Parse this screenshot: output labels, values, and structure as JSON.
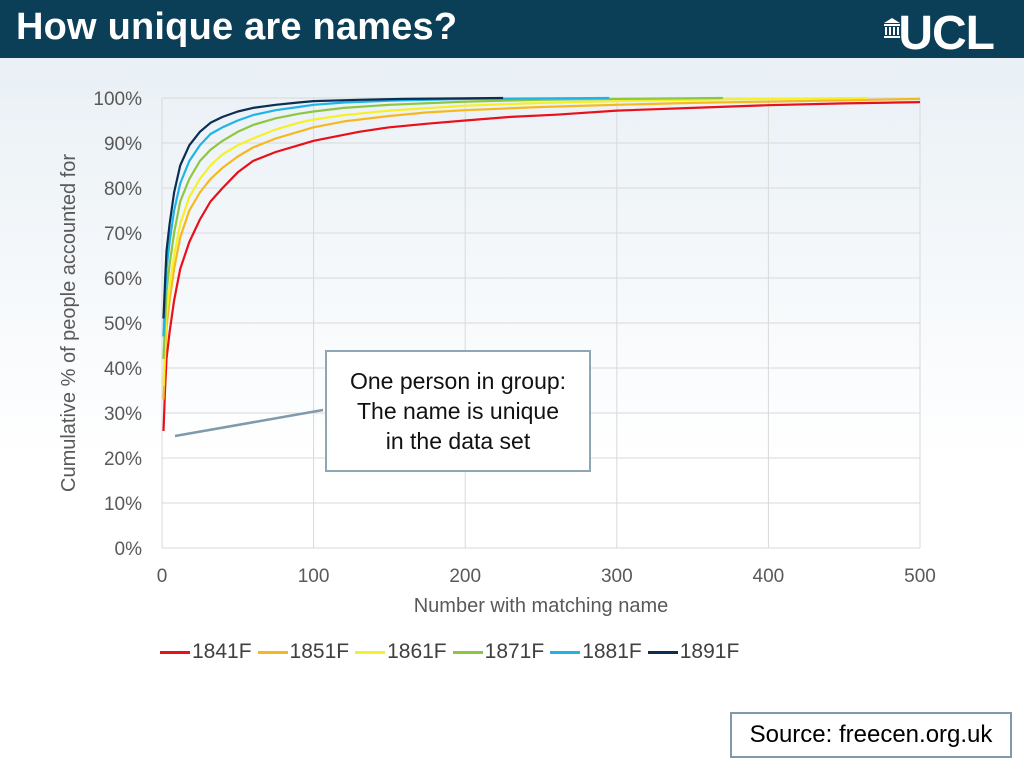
{
  "header": {
    "title": "How unique are names?",
    "logo_text": "UCL"
  },
  "annotation": {
    "lines": [
      "One person in group:",
      "The name is unique",
      "in the data set"
    ]
  },
  "source": "Source: freecen.org.uk",
  "chart_data": {
    "type": "line",
    "xlabel": "Number with matching name",
    "ylabel": "Cumulative % of people accounted for",
    "xlim": [
      0,
      500
    ],
    "ylim": [
      0,
      100
    ],
    "x_ticks": [
      0,
      100,
      200,
      300,
      400,
      500
    ],
    "y_ticks": [
      "0%",
      "10%",
      "20%",
      "30%",
      "40%",
      "50%",
      "60%",
      "70%",
      "80%",
      "90%",
      "100%"
    ],
    "grid": true,
    "legend_position": "bottom",
    "series": [
      {
        "name": "1841F",
        "color": "#e8101a",
        "points": [
          [
            1,
            26
          ],
          [
            2,
            35
          ],
          [
            3,
            42
          ],
          [
            5,
            48
          ],
          [
            8,
            55
          ],
          [
            12,
            62
          ],
          [
            18,
            68
          ],
          [
            25,
            73
          ],
          [
            32,
            77
          ],
          [
            40,
            80
          ],
          [
            50,
            83.5
          ],
          [
            60,
            86
          ],
          [
            75,
            88
          ],
          [
            90,
            89.5
          ],
          [
            100,
            90.5
          ],
          [
            115,
            91.5
          ],
          [
            130,
            92.5
          ],
          [
            150,
            93.5
          ],
          [
            175,
            94.3
          ],
          [
            200,
            95
          ],
          [
            230,
            95.8
          ],
          [
            260,
            96.3
          ],
          [
            300,
            97.2
          ],
          [
            350,
            97.8
          ],
          [
            400,
            98.4
          ],
          [
            450,
            98.8
          ],
          [
            500,
            99.1
          ]
        ]
      },
      {
        "name": "1851F",
        "color": "#f6b81f",
        "points": [
          [
            1,
            33
          ],
          [
            2,
            42
          ],
          [
            3,
            49
          ],
          [
            5,
            55
          ],
          [
            8,
            62
          ],
          [
            12,
            69
          ],
          [
            18,
            75
          ],
          [
            25,
            79
          ],
          [
            32,
            82
          ],
          [
            40,
            84.5
          ],
          [
            50,
            87
          ],
          [
            60,
            89
          ],
          [
            75,
            91
          ],
          [
            90,
            92.5
          ],
          [
            100,
            93.5
          ],
          [
            120,
            94.8
          ],
          [
            150,
            96
          ],
          [
            175,
            96.8
          ],
          [
            200,
            97.3
          ],
          [
            250,
            98
          ],
          [
            300,
            98.5
          ],
          [
            350,
            98.9
          ],
          [
            400,
            99.2
          ],
          [
            450,
            99.5
          ],
          [
            500,
            99.8
          ]
        ]
      },
      {
        "name": "1861F",
        "color": "#f5f02a",
        "points": [
          [
            1,
            36
          ],
          [
            2,
            45
          ],
          [
            3,
            52
          ],
          [
            5,
            58
          ],
          [
            8,
            65
          ],
          [
            12,
            72
          ],
          [
            18,
            78
          ],
          [
            25,
            82
          ],
          [
            32,
            85
          ],
          [
            40,
            87.5
          ],
          [
            50,
            89.5
          ],
          [
            60,
            91
          ],
          [
            75,
            93
          ],
          [
            90,
            94.5
          ],
          [
            100,
            95.2
          ],
          [
            120,
            96.2
          ],
          [
            150,
            97.2
          ],
          [
            200,
            98.3
          ],
          [
            250,
            98.9
          ],
          [
            300,
            99.3
          ],
          [
            350,
            99.6
          ],
          [
            400,
            99.8
          ],
          [
            465,
            100
          ]
        ]
      },
      {
        "name": "1871F",
        "color": "#8dc641",
        "points": [
          [
            1,
            42
          ],
          [
            2,
            50
          ],
          [
            3,
            57
          ],
          [
            5,
            63
          ],
          [
            8,
            70
          ],
          [
            12,
            77
          ],
          [
            18,
            82
          ],
          [
            25,
            86
          ],
          [
            32,
            88.5
          ],
          [
            40,
            90.5
          ],
          [
            50,
            92.5
          ],
          [
            60,
            94
          ],
          [
            75,
            95.5
          ],
          [
            90,
            96.5
          ],
          [
            100,
            97
          ],
          [
            120,
            97.8
          ],
          [
            150,
            98.5
          ],
          [
            200,
            99.2
          ],
          [
            250,
            99.6
          ],
          [
            300,
            99.8
          ],
          [
            370,
            100
          ]
        ]
      },
      {
        "name": "1881F",
        "color": "#1fb4e6",
        "points": [
          [
            1,
            47
          ],
          [
            2,
            55
          ],
          [
            3,
            62
          ],
          [
            5,
            68
          ],
          [
            8,
            75
          ],
          [
            12,
            81
          ],
          [
            18,
            86
          ],
          [
            25,
            89.5
          ],
          [
            32,
            92
          ],
          [
            40,
            93.5
          ],
          [
            50,
            95
          ],
          [
            60,
            96.2
          ],
          [
            75,
            97.3
          ],
          [
            90,
            98
          ],
          [
            100,
            98.5
          ],
          [
            120,
            99
          ],
          [
            150,
            99.4
          ],
          [
            200,
            99.8
          ],
          [
            295,
            100
          ]
        ]
      },
      {
        "name": "1891F",
        "color": "#0b2e52",
        "points": [
          [
            1,
            51
          ],
          [
            2,
            59
          ],
          [
            3,
            66
          ],
          [
            5,
            72
          ],
          [
            8,
            79
          ],
          [
            12,
            85
          ],
          [
            18,
            89.5
          ],
          [
            25,
            92.5
          ],
          [
            32,
            94.5
          ],
          [
            40,
            95.8
          ],
          [
            50,
            97
          ],
          [
            60,
            97.8
          ],
          [
            75,
            98.5
          ],
          [
            90,
            99
          ],
          [
            100,
            99.3
          ],
          [
            130,
            99.6
          ],
          [
            160,
            99.8
          ],
          [
            225,
            100
          ]
        ]
      }
    ]
  }
}
